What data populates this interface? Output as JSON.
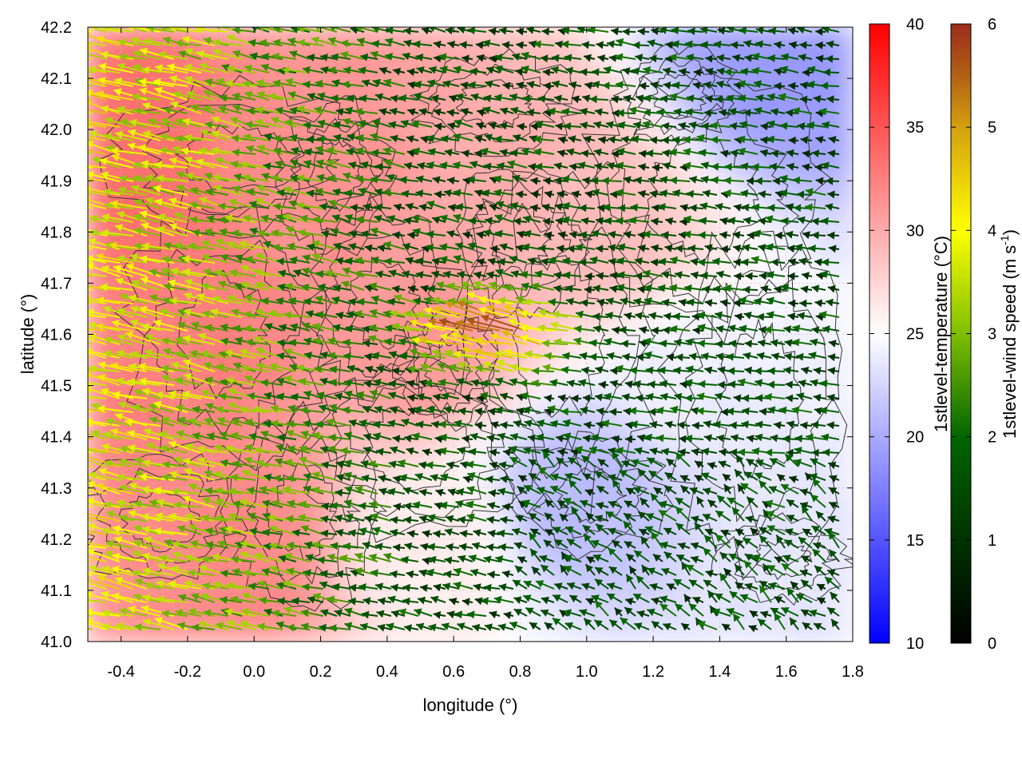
{
  "chart_data": {
    "type": "heatmap",
    "subtype": "vector-field-over-color-map-with-contours",
    "xlabel": "longitude (°)",
    "ylabel": "latitude (°)",
    "xlim": [
      -0.5,
      1.8
    ],
    "ylim": [
      41.0,
      42.2
    ],
    "x_ticks": [
      -0.4,
      -0.2,
      0.0,
      0.2,
      0.4,
      0.6,
      0.8,
      1.0,
      1.2,
      1.4,
      1.6,
      1.8
    ],
    "x_tick_labels": [
      "-0.4",
      "-0.2",
      "0.0",
      "0.2",
      "0.4",
      "0.6",
      "0.8",
      "1.0",
      "1.2",
      "1.4",
      "1.6",
      "1.8"
    ],
    "y_ticks": [
      41.0,
      41.1,
      41.2,
      41.3,
      41.4,
      41.5,
      41.6,
      41.7,
      41.8,
      41.9,
      42.0,
      42.1,
      42.2
    ],
    "y_tick_labels": [
      "41.0",
      "41.1",
      "41.2",
      "41.3",
      "41.4",
      "41.5",
      "41.6",
      "41.7",
      "41.8",
      "41.9",
      "42.0",
      "42.1",
      "42.2"
    ],
    "grid": true,
    "temperature_colorbar": {
      "label": "1stlevel-temperature (°C)",
      "range": [
        10,
        40
      ],
      "ticks": [
        10,
        15,
        20,
        25,
        30,
        35,
        40
      ],
      "tick_labels": [
        "10",
        "15",
        "20",
        "25",
        "30",
        "35",
        "40"
      ],
      "colors": [
        "#0000ff",
        "#ffffff",
        "#ff0000"
      ]
    },
    "wind_colorbar": {
      "label_main": "1stlevel-wind speed (m s",
      "label_sup1": "-1",
      "label_close": ")",
      "range": [
        0,
        6
      ],
      "ticks": [
        0,
        1,
        2,
        3,
        4,
        5,
        6
      ],
      "tick_labels": [
        "0",
        "1",
        "2",
        "3",
        "4",
        "5",
        "6"
      ],
      "colors": [
        "#000000",
        "#006400",
        "#7fbf00",
        "#ffff00",
        "#d4a010",
        "#b05e14",
        "#9b2d1e"
      ]
    },
    "temperature_field": {
      "description_points": [
        {
          "lon": -0.4,
          "lat": 41.9,
          "temp": 33.5
        },
        {
          "lon": -0.2,
          "lat": 41.6,
          "temp": 32.5
        },
        {
          "lon": 0.0,
          "lat": 41.2,
          "temp": 32.0
        },
        {
          "lon": 0.2,
          "lat": 41.9,
          "temp": 31.5
        },
        {
          "lon": 0.5,
          "lat": 41.6,
          "temp": 31.0
        },
        {
          "lon": 0.7,
          "lat": 41.9,
          "temp": 30.0
        },
        {
          "lon": 1.0,
          "lat": 41.8,
          "temp": 29.0
        },
        {
          "lon": 0.5,
          "lat": 41.2,
          "temp": 26.0
        },
        {
          "lon": 1.0,
          "lat": 41.3,
          "temp": 21.0
        },
        {
          "lon": 1.3,
          "lat": 41.5,
          "temp": 24.0
        },
        {
          "lon": 1.6,
          "lat": 42.15,
          "temp": 19.0
        },
        {
          "lon": 1.6,
          "lat": 41.1,
          "temp": 23.5
        }
      ]
    },
    "wind_field_summary": {
      "west_low_lat_speed": 4.0,
      "central_max_speed": 5.9,
      "east_speed": 1.5,
      "dominant_direction": "north-westward (blowing towards upper-left)"
    }
  }
}
